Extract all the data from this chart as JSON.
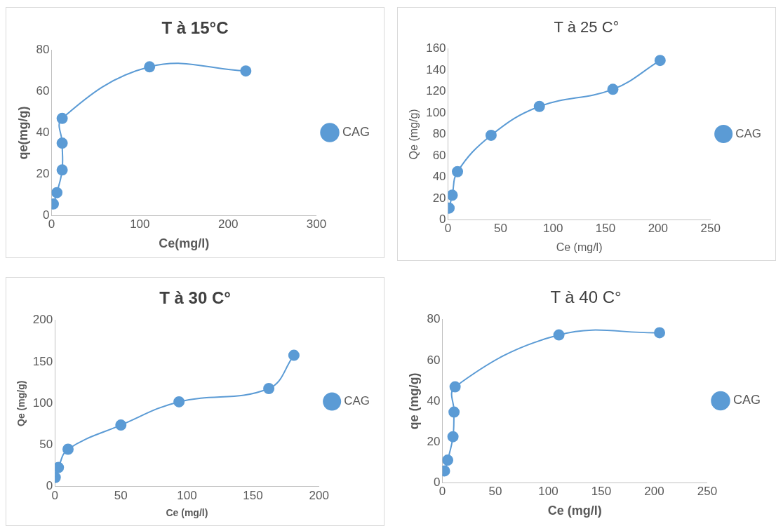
{
  "chart_data": [
    {
      "type": "line",
      "title": "T à 15°C",
      "xlabel": "Ce(mg/l)",
      "ylabel": "qe(mg/g)",
      "xlim": [
        0,
        300
      ],
      "xticks": [
        0,
        100,
        200,
        300
      ],
      "ylim": [
        0,
        80
      ],
      "yticks": [
        0,
        20,
        40,
        60,
        80
      ],
      "grid": false,
      "legend": "right",
      "marker": "circle",
      "x": [
        2,
        6,
        12,
        12,
        12,
        111,
        220
      ],
      "series": [
        {
          "name": "CAG",
          "color": "#5b9bd5",
          "values": [
            5.5,
            11,
            22,
            35,
            47,
            72,
            70
          ]
        }
      ]
    },
    {
      "type": "line",
      "title": "T à 25 C°",
      "xlabel": "Ce (mg/l)",
      "ylabel": "Qe (mg/g)",
      "xlim": [
        0,
        250
      ],
      "xticks": [
        0,
        50,
        100,
        150,
        200,
        250
      ],
      "ylim": [
        0,
        160
      ],
      "yticks": [
        0,
        20,
        40,
        60,
        80,
        100,
        120,
        140,
        160
      ],
      "grid": false,
      "legend": "right",
      "marker": "circle",
      "x": [
        1,
        4,
        9,
        41,
        87,
        157,
        202
      ],
      "series": [
        {
          "name": "CAG",
          "color": "#5b9bd5",
          "values": [
            11,
            23,
            45,
            79,
            106,
            122,
            149
          ]
        }
      ]
    },
    {
      "type": "line",
      "title": "T à 30 C°",
      "xlabel": "Ce (mg/l)",
      "ylabel": "Qe (mg/g)",
      "xlim": [
        0,
        200
      ],
      "xticks": [
        0,
        50,
        100,
        150,
        200
      ],
      "ylim": [
        0,
        200
      ],
      "yticks": [
        0,
        50,
        100,
        150,
        200
      ],
      "grid": false,
      "legend": "right",
      "marker": "circle",
      "x": [
        0.3,
        2.7,
        10,
        50,
        94,
        162,
        181
      ],
      "series": [
        {
          "name": "CAG",
          "color": "#5b9bd5",
          "values": [
            11,
            23,
            45,
            74,
            102,
            118,
            158
          ]
        }
      ]
    },
    {
      "type": "line",
      "title": "T à 40 C°",
      "xlabel": "Ce (mg/l)",
      "ylabel": "qe (mg/g)",
      "xlim": [
        0,
        250
      ],
      "xticks": [
        0,
        50,
        100,
        150,
        200,
        250
      ],
      "ylim": [
        0,
        80
      ],
      "yticks": [
        0,
        20,
        40,
        60,
        80
      ],
      "grid": false,
      "legend": "right",
      "marker": "circle",
      "x": [
        2,
        5,
        10,
        11,
        12,
        110,
        205
      ],
      "series": [
        {
          "name": "CAG",
          "color": "#5b9bd5",
          "values": [
            5.7,
            11,
            22.5,
            34.6,
            47,
            72.5,
            73.6
          ]
        }
      ]
    }
  ]
}
